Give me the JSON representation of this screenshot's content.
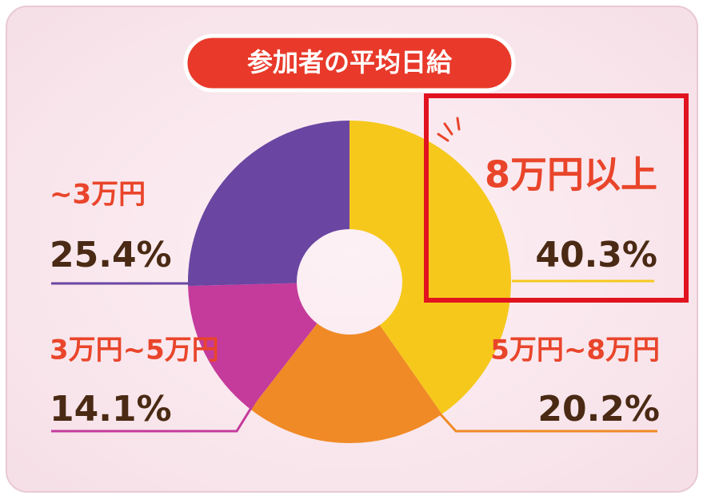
{
  "chart_data": {
    "type": "pie",
    "title": "参加者の平均日給",
    "categories": [
      "8万円以上",
      "5万円~8万円",
      "3万円~5万円",
      "~3万円"
    ],
    "values": [
      40.3,
      20.2,
      14.1,
      25.4
    ],
    "value_labels": [
      "40.3%",
      "20.2%",
      "14.1%",
      "25.4%"
    ],
    "colors": [
      "#f6c81c",
      "#f08a26",
      "#c43b9c",
      "#6a46a2"
    ],
    "donut": true
  }
}
